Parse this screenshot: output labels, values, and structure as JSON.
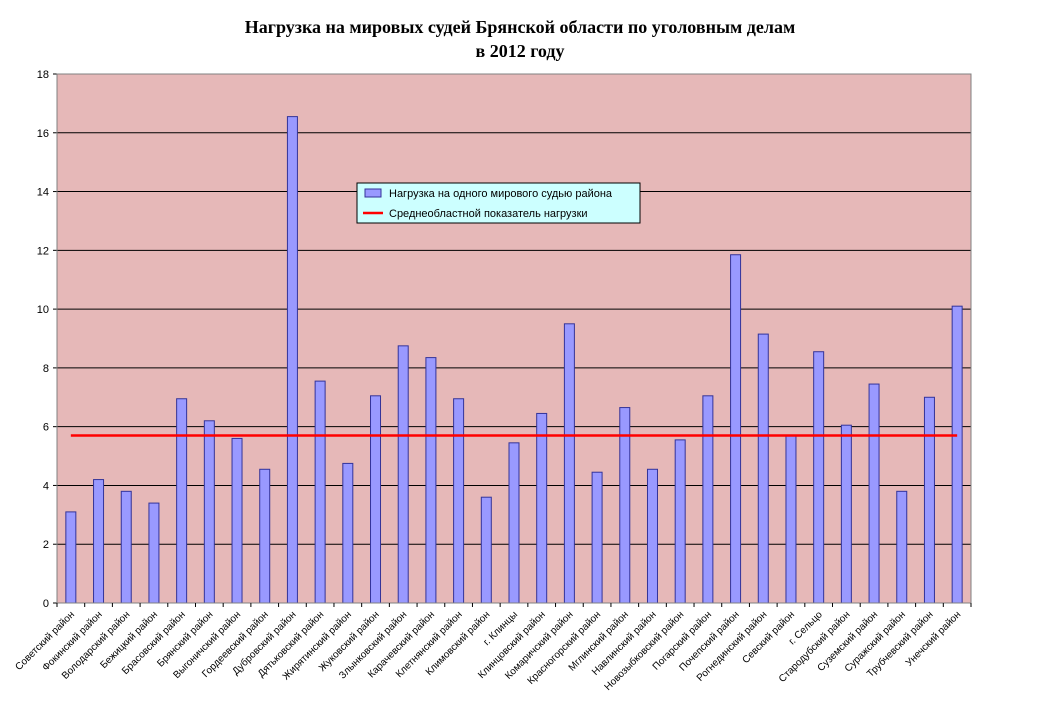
{
  "chart_data": {
    "type": "bar",
    "title_line1": "Нагрузка на мировых судей Брянской области по уголовным делам",
    "title_line2": "в 2012 году",
    "ylim": [
      0,
      18
    ],
    "yticks": [
      0,
      2,
      4,
      6,
      8,
      10,
      12,
      14,
      16,
      18
    ],
    "grid": true,
    "legend_position": "top-center",
    "colors": {
      "plot_bg": "#e6b8b8",
      "bar_fill": "#9999ff",
      "bar_stroke": "#333399",
      "avg_line": "#ff0000",
      "legend_bg": "#ccffff",
      "grid": "#000000"
    },
    "categories": [
      "Советский район",
      "Фокинский район",
      "Володарский район",
      "Бежицкий район",
      "Брасовский район",
      "Брянский район",
      "Выгоничский район",
      "Гордеевский район",
      "Дубровский район",
      "Дятьковский район",
      "Жирятинский район",
      "Жуковский район",
      "Злынковский район",
      "Карачевский район",
      "Клетнянский район",
      "Климовский район",
      "г. Клинцы",
      "Клинцовский район",
      "Комаричский район",
      "Красногорский район",
      "Мглинский район",
      "Навлинский район",
      "Новозыбковский район",
      "Погарский район",
      "Почепский район",
      "Рогнединский район",
      "Севский район",
      "г. Сельцо",
      "Стародубский район",
      "Суземский район",
      "Суражский район",
      "Трубчевский район",
      "Унечский район"
    ],
    "series": [
      {
        "name": "Нагрузка на одного мирового судью района",
        "values": [
          3.1,
          4.2,
          3.8,
          3.4,
          6.95,
          6.2,
          5.6,
          4.55,
          16.55,
          7.55,
          4.75,
          7.05,
          8.75,
          8.35,
          6.95,
          3.6,
          5.45,
          6.45,
          9.5,
          4.45,
          6.65,
          4.55,
          5.55,
          7.05,
          11.85,
          9.15,
          5.7,
          8.55,
          6.05,
          7.45,
          3.8,
          7.0,
          10.1
        ]
      },
      {
        "name": "Среднеобластной показатель нагрузки",
        "type": "line",
        "value": 5.7
      }
    ]
  }
}
